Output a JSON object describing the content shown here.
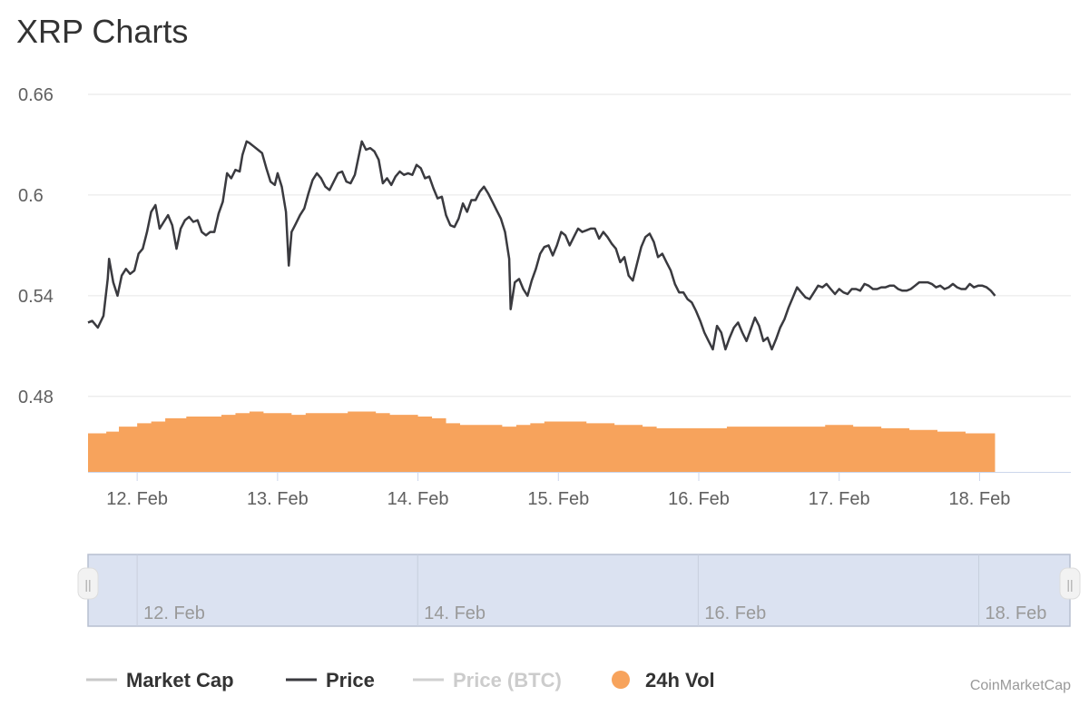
{
  "page": {
    "title": "XRP Charts"
  },
  "colors": {
    "price": "#3a3a3f",
    "volume": "#f7a35c",
    "market_cap": "#c9c9c9",
    "price_btc": "#c9c9c9",
    "grid": "#e6e6e6",
    "navigator_fill": "#dbe2f1",
    "navigator_border": "#b7bfd0"
  },
  "legend": [
    {
      "label": "Market Cap",
      "symbol": "line",
      "active": false,
      "color": "#c9c9c9",
      "text_color": "#333333"
    },
    {
      "label": "Price",
      "symbol": "line",
      "active": true,
      "color": "#3a3a3f",
      "text_color": "#333333"
    },
    {
      "label": "Price (BTC)",
      "symbol": "line",
      "active": false,
      "color": "#d0d0d0",
      "text_color": "#cccccc"
    },
    {
      "label": "24h Vol",
      "symbol": "circle",
      "active": true,
      "color": "#f7a35c",
      "text_color": "#333333"
    }
  ],
  "credit": "CoinMarketCap",
  "navigator": {
    "labels": [
      {
        "text": "12. Feb",
        "day": 12
      },
      {
        "text": "14. Feb",
        "day": 14
      },
      {
        "text": "16. Feb",
        "day": 16
      },
      {
        "text": "18. Feb",
        "day": 18
      }
    ],
    "handle_glyph": "||"
  },
  "chart_data": {
    "type": "line",
    "title": "XRP Charts",
    "x_unit": "days of February (12. Feb = 12.0)",
    "xlim": [
      11.65,
      18.65
    ],
    "ylim": [
      0.435,
      0.66
    ],
    "y_ticks": [
      {
        "label": "0.66",
        "value": 0.66
      },
      {
        "label": "0.6",
        "value": 0.6
      },
      {
        "label": "0.54",
        "value": 0.54
      },
      {
        "label": "0.48",
        "value": 0.48
      }
    ],
    "x_ticks": [
      {
        "label": "12. Feb",
        "value": 12
      },
      {
        "label": "13. Feb",
        "value": 13
      },
      {
        "label": "14. Feb",
        "value": 14
      },
      {
        "label": "15. Feb",
        "value": 15
      },
      {
        "label": "16. Feb",
        "value": 16
      },
      {
        "label": "17. Feb",
        "value": 17
      },
      {
        "label": "18. Feb",
        "value": 18
      }
    ],
    "grid": true,
    "legend_position": "bottom",
    "series": [
      {
        "name": "Price",
        "type": "line",
        "points": [
          [
            11.65,
            0.524
          ],
          [
            11.68,
            0.525
          ],
          [
            11.72,
            0.521
          ],
          [
            11.76,
            0.528
          ],
          [
            11.79,
            0.55
          ],
          [
            11.8,
            0.562
          ],
          [
            11.83,
            0.548
          ],
          [
            11.86,
            0.54
          ],
          [
            11.89,
            0.552
          ],
          [
            11.92,
            0.556
          ],
          [
            11.95,
            0.553
          ],
          [
            11.98,
            0.555
          ],
          [
            12.01,
            0.565
          ],
          [
            12.04,
            0.568
          ],
          [
            12.07,
            0.578
          ],
          [
            12.1,
            0.59
          ],
          [
            12.13,
            0.594
          ],
          [
            12.16,
            0.58
          ],
          [
            12.19,
            0.584
          ],
          [
            12.22,
            0.588
          ],
          [
            12.25,
            0.582
          ],
          [
            12.28,
            0.568
          ],
          [
            12.31,
            0.58
          ],
          [
            12.34,
            0.585
          ],
          [
            12.37,
            0.587
          ],
          [
            12.4,
            0.584
          ],
          [
            12.43,
            0.585
          ],
          [
            12.46,
            0.578
          ],
          [
            12.49,
            0.576
          ],
          [
            12.52,
            0.578
          ],
          [
            12.55,
            0.578
          ],
          [
            12.58,
            0.589
          ],
          [
            12.61,
            0.596
          ],
          [
            12.64,
            0.613
          ],
          [
            12.67,
            0.61
          ],
          [
            12.7,
            0.615
          ],
          [
            12.73,
            0.614
          ],
          [
            12.75,
            0.624
          ],
          [
            12.78,
            0.632
          ],
          [
            12.8,
            0.631
          ],
          [
            12.83,
            0.629
          ],
          [
            12.86,
            0.627
          ],
          [
            12.89,
            0.625
          ],
          [
            12.92,
            0.616
          ],
          [
            12.95,
            0.608
          ],
          [
            12.98,
            0.606
          ],
          [
            13.0,
            0.613
          ],
          [
            13.03,
            0.605
          ],
          [
            13.06,
            0.59
          ],
          [
            13.08,
            0.558
          ],
          [
            13.1,
            0.578
          ],
          [
            13.13,
            0.583
          ],
          [
            13.16,
            0.588
          ],
          [
            13.19,
            0.592
          ],
          [
            13.22,
            0.601
          ],
          [
            13.25,
            0.609
          ],
          [
            13.28,
            0.613
          ],
          [
            13.31,
            0.61
          ],
          [
            13.34,
            0.605
          ],
          [
            13.37,
            0.603
          ],
          [
            13.4,
            0.608
          ],
          [
            13.43,
            0.613
          ],
          [
            13.46,
            0.614
          ],
          [
            13.49,
            0.608
          ],
          [
            13.52,
            0.607
          ],
          [
            13.55,
            0.612
          ],
          [
            13.58,
            0.624
          ],
          [
            13.6,
            0.632
          ],
          [
            13.63,
            0.627
          ],
          [
            13.66,
            0.628
          ],
          [
            13.69,
            0.626
          ],
          [
            13.72,
            0.621
          ],
          [
            13.75,
            0.607
          ],
          [
            13.78,
            0.61
          ],
          [
            13.81,
            0.606
          ],
          [
            13.84,
            0.611
          ],
          [
            13.87,
            0.614
          ],
          [
            13.9,
            0.612
          ],
          [
            13.93,
            0.613
          ],
          [
            13.96,
            0.612
          ],
          [
            13.99,
            0.618
          ],
          [
            14.02,
            0.616
          ],
          [
            14.05,
            0.61
          ],
          [
            14.08,
            0.611
          ],
          [
            14.11,
            0.604
          ],
          [
            14.14,
            0.598
          ],
          [
            14.17,
            0.599
          ],
          [
            14.2,
            0.588
          ],
          [
            14.23,
            0.582
          ],
          [
            14.26,
            0.581
          ],
          [
            14.29,
            0.586
          ],
          [
            14.32,
            0.595
          ],
          [
            14.35,
            0.59
          ],
          [
            14.38,
            0.597
          ],
          [
            14.41,
            0.597
          ],
          [
            14.44,
            0.602
          ],
          [
            14.47,
            0.605
          ],
          [
            14.5,
            0.601
          ],
          [
            14.53,
            0.596
          ],
          [
            14.56,
            0.591
          ],
          [
            14.59,
            0.586
          ],
          [
            14.62,
            0.578
          ],
          [
            14.65,
            0.562
          ],
          [
            14.66,
            0.532
          ],
          [
            14.69,
            0.548
          ],
          [
            14.72,
            0.55
          ],
          [
            14.75,
            0.544
          ],
          [
            14.78,
            0.54
          ],
          [
            14.81,
            0.549
          ],
          [
            14.84,
            0.556
          ],
          [
            14.87,
            0.565
          ],
          [
            14.9,
            0.569
          ],
          [
            14.93,
            0.57
          ],
          [
            14.96,
            0.564
          ],
          [
            14.99,
            0.57
          ],
          [
            15.02,
            0.578
          ],
          [
            15.05,
            0.576
          ],
          [
            15.08,
            0.57
          ],
          [
            15.11,
            0.575
          ],
          [
            15.14,
            0.58
          ],
          [
            15.17,
            0.578
          ],
          [
            15.2,
            0.579
          ],
          [
            15.23,
            0.58
          ],
          [
            15.26,
            0.58
          ],
          [
            15.29,
            0.574
          ],
          [
            15.32,
            0.578
          ],
          [
            15.35,
            0.575
          ],
          [
            15.38,
            0.571
          ],
          [
            15.41,
            0.568
          ],
          [
            15.44,
            0.56
          ],
          [
            15.47,
            0.563
          ],
          [
            15.5,
            0.552
          ],
          [
            15.53,
            0.549
          ],
          [
            15.56,
            0.559
          ],
          [
            15.59,
            0.569
          ],
          [
            15.62,
            0.575
          ],
          [
            15.65,
            0.577
          ],
          [
            15.68,
            0.572
          ],
          [
            15.71,
            0.563
          ],
          [
            15.74,
            0.565
          ],
          [
            15.77,
            0.56
          ],
          [
            15.8,
            0.555
          ],
          [
            15.83,
            0.547
          ],
          [
            15.86,
            0.542
          ],
          [
            15.89,
            0.542
          ],
          [
            15.92,
            0.538
          ],
          [
            15.95,
            0.536
          ],
          [
            15.98,
            0.531
          ],
          [
            16.01,
            0.525
          ],
          [
            16.04,
            0.518
          ],
          [
            16.07,
            0.513
          ],
          [
            16.1,
            0.508
          ],
          [
            16.13,
            0.522
          ],
          [
            16.16,
            0.518
          ],
          [
            16.19,
            0.508
          ],
          [
            16.22,
            0.515
          ],
          [
            16.25,
            0.521
          ],
          [
            16.28,
            0.524
          ],
          [
            16.31,
            0.518
          ],
          [
            16.34,
            0.513
          ],
          [
            16.37,
            0.52
          ],
          [
            16.4,
            0.527
          ],
          [
            16.43,
            0.522
          ],
          [
            16.46,
            0.513
          ],
          [
            16.49,
            0.515
          ],
          [
            16.52,
            0.508
          ],
          [
            16.55,
            0.514
          ],
          [
            16.58,
            0.521
          ],
          [
            16.61,
            0.526
          ],
          [
            16.64,
            0.533
          ],
          [
            16.67,
            0.539
          ],
          [
            16.7,
            0.545
          ],
          [
            16.73,
            0.542
          ],
          [
            16.76,
            0.539
          ],
          [
            16.79,
            0.538
          ],
          [
            16.82,
            0.542
          ],
          [
            16.85,
            0.546
          ],
          [
            16.88,
            0.545
          ],
          [
            16.91,
            0.547
          ],
          [
            16.94,
            0.544
          ],
          [
            16.97,
            0.541
          ],
          [
            17.0,
            0.544
          ],
          [
            17.03,
            0.542
          ],
          [
            17.06,
            0.541
          ],
          [
            17.09,
            0.544
          ],
          [
            17.12,
            0.544
          ],
          [
            17.15,
            0.543
          ],
          [
            17.18,
            0.547
          ],
          [
            17.21,
            0.546
          ],
          [
            17.24,
            0.544
          ],
          [
            17.27,
            0.544
          ],
          [
            17.3,
            0.545
          ],
          [
            17.33,
            0.545
          ],
          [
            17.36,
            0.546
          ],
          [
            17.39,
            0.546
          ],
          [
            17.42,
            0.544
          ],
          [
            17.45,
            0.543
          ],
          [
            17.48,
            0.543
          ],
          [
            17.51,
            0.544
          ],
          [
            17.54,
            0.546
          ],
          [
            17.57,
            0.548
          ],
          [
            17.6,
            0.548
          ],
          [
            17.63,
            0.548
          ],
          [
            17.66,
            0.547
          ],
          [
            17.69,
            0.545
          ],
          [
            17.72,
            0.546
          ],
          [
            17.75,
            0.544
          ],
          [
            17.78,
            0.545
          ],
          [
            17.81,
            0.547
          ],
          [
            17.84,
            0.545
          ],
          [
            17.87,
            0.544
          ],
          [
            17.9,
            0.544
          ],
          [
            17.93,
            0.547
          ],
          [
            17.96,
            0.545
          ],
          [
            17.99,
            0.546
          ],
          [
            18.02,
            0.546
          ],
          [
            18.05,
            0.545
          ],
          [
            18.08,
            0.543
          ],
          [
            18.11,
            0.54
          ]
        ]
      },
      {
        "name": "24h Vol",
        "type": "area",
        "points": [
          [
            11.65,
            0.458
          ],
          [
            11.78,
            0.459
          ],
          [
            11.87,
            0.462
          ],
          [
            12.0,
            0.464
          ],
          [
            12.1,
            0.465
          ],
          [
            12.2,
            0.467
          ],
          [
            12.35,
            0.468
          ],
          [
            12.5,
            0.468
          ],
          [
            12.6,
            0.469
          ],
          [
            12.7,
            0.47
          ],
          [
            12.8,
            0.471
          ],
          [
            12.9,
            0.47
          ],
          [
            13.0,
            0.47
          ],
          [
            13.1,
            0.469
          ],
          [
            13.2,
            0.47
          ],
          [
            13.3,
            0.47
          ],
          [
            13.4,
            0.47
          ],
          [
            13.5,
            0.471
          ],
          [
            13.6,
            0.471
          ],
          [
            13.7,
            0.47
          ],
          [
            13.8,
            0.469
          ],
          [
            13.9,
            0.469
          ],
          [
            14.0,
            0.468
          ],
          [
            14.1,
            0.467
          ],
          [
            14.2,
            0.464
          ],
          [
            14.3,
            0.463
          ],
          [
            14.4,
            0.463
          ],
          [
            14.5,
            0.463
          ],
          [
            14.6,
            0.462
          ],
          [
            14.7,
            0.463
          ],
          [
            14.8,
            0.464
          ],
          [
            14.9,
            0.465
          ],
          [
            15.0,
            0.465
          ],
          [
            15.1,
            0.465
          ],
          [
            15.2,
            0.464
          ],
          [
            15.3,
            0.464
          ],
          [
            15.4,
            0.463
          ],
          [
            15.5,
            0.463
          ],
          [
            15.6,
            0.462
          ],
          [
            15.7,
            0.461
          ],
          [
            15.8,
            0.461
          ],
          [
            15.9,
            0.461
          ],
          [
            16.0,
            0.461
          ],
          [
            16.1,
            0.461
          ],
          [
            16.2,
            0.462
          ],
          [
            16.3,
            0.462
          ],
          [
            16.4,
            0.462
          ],
          [
            16.5,
            0.462
          ],
          [
            16.6,
            0.462
          ],
          [
            16.7,
            0.462
          ],
          [
            16.8,
            0.462
          ],
          [
            16.9,
            0.463
          ],
          [
            17.0,
            0.463
          ],
          [
            17.1,
            0.462
          ],
          [
            17.2,
            0.462
          ],
          [
            17.3,
            0.461
          ],
          [
            17.4,
            0.461
          ],
          [
            17.5,
            0.46
          ],
          [
            17.6,
            0.46
          ],
          [
            17.7,
            0.459
          ],
          [
            17.8,
            0.459
          ],
          [
            17.9,
            0.458
          ],
          [
            18.0,
            0.458
          ],
          [
            18.11,
            0.458
          ]
        ]
      }
    ]
  }
}
